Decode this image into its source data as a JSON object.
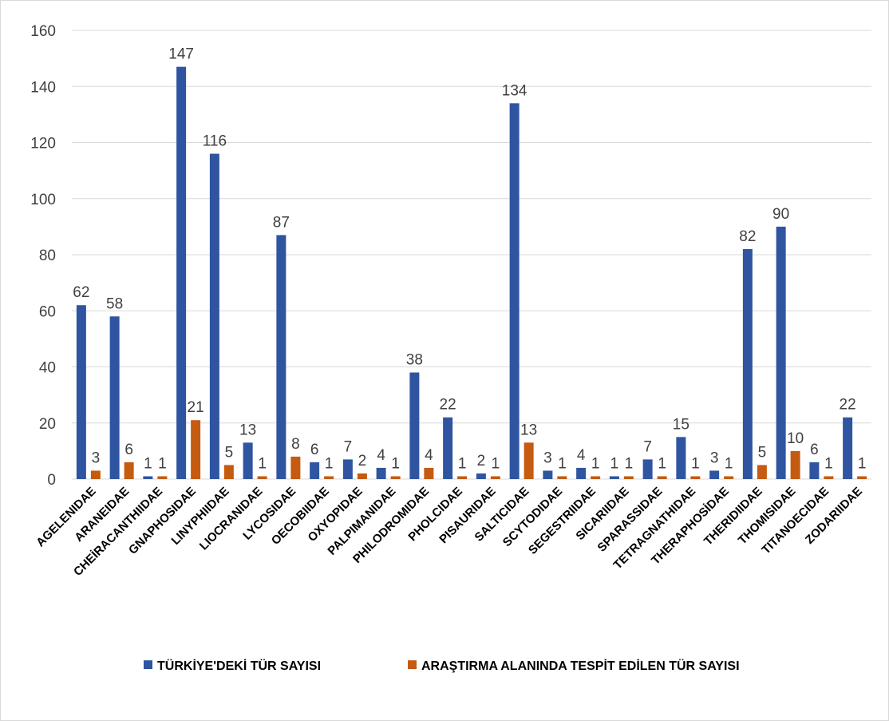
{
  "chart_data": {
    "type": "bar",
    "title": "",
    "xlabel": "",
    "ylabel": "",
    "ylim": [
      0,
      160
    ],
    "yticks": [
      0,
      20,
      40,
      60,
      80,
      100,
      120,
      140,
      160
    ],
    "grid": true,
    "legend_position": "bottom",
    "categories": [
      "AGELENIDAE",
      "ARANEIDAE",
      "CHEİRACANTHIIDAE",
      "GNAPHOSIDAE",
      "LINYPHIIDAE",
      "LIOCRANIDAE",
      "LYCOSIDAE",
      "OECOBIIDAE",
      "OXYOPIDAE",
      "PALPIMANIDAE",
      "PHILODROMIDAE",
      "PHOLCIDAE",
      "PISAURIDAE",
      "SALTICIDAE",
      "SCYTODIDAE",
      "SEGESTRIIDAE",
      "SICARIIDAE",
      "SPARASSIDAE",
      "TETRAGNATHIDAE",
      "THERAPHOSİDAE",
      "THERIDIIDAE",
      "THOMISIDAE",
      "TITANOECIDAE",
      "ZODARIIDAE"
    ],
    "series": [
      {
        "name": "TÜRKİYE'DEKİ TÜR SAYISI",
        "color": "#2f55a1",
        "values": [
          62,
          58,
          1,
          147,
          116,
          13,
          87,
          6,
          7,
          4,
          38,
          22,
          2,
          134,
          3,
          4,
          1,
          7,
          15,
          3,
          82,
          90,
          6,
          22
        ]
      },
      {
        "name": "ARAŞTIRMA ALANINDA TESPİT EDİLEN TÜR SAYISI",
        "color": "#c55a11",
        "values": [
          3,
          6,
          1,
          21,
          5,
          1,
          8,
          1,
          2,
          1,
          4,
          1,
          1,
          13,
          1,
          1,
          1,
          1,
          1,
          1,
          5,
          10,
          1,
          1
        ]
      }
    ]
  }
}
